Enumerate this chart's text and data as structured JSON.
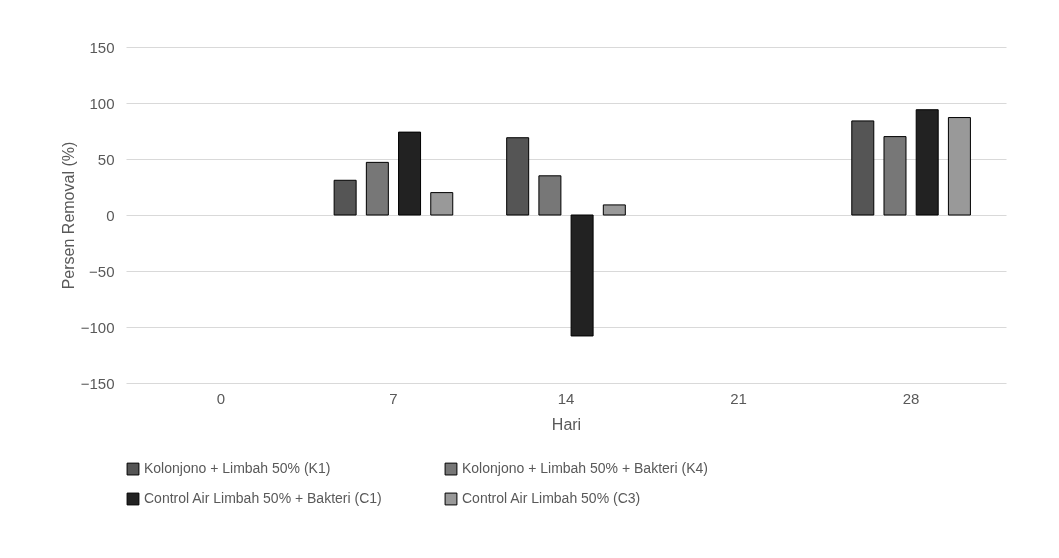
{
  "chart_data": {
    "type": "bar",
    "xlabel": "Hari",
    "ylabel": "Persen Removal (%)",
    "categories": [
      "0",
      "7",
      "14",
      "21",
      "28"
    ],
    "series": [
      {
        "name": "Kolonjono + Limbah 50% (K1)",
        "color": "#555555",
        "values": [
          null,
          31,
          69,
          null,
          84
        ]
      },
      {
        "name": "Kolonjono + Limbah 50% + Bakteri (K4)",
        "color": "#777777",
        "values": [
          null,
          47,
          35,
          null,
          70
        ]
      },
      {
        "name": "Control Air Limbah 50% + Bakteri (C1)",
        "color": "#222222",
        "values": [
          null,
          74,
          -108,
          null,
          94
        ]
      },
      {
        "name": "Control Air Limbah 50% (C3)",
        "color": "#999999",
        "values": [
          null,
          20,
          9,
          null,
          87
        ]
      }
    ],
    "ylim": [
      -150,
      150
    ],
    "yticks": [
      -150,
      -100,
      -50,
      0,
      50,
      100,
      150
    ],
    "grid": "y",
    "legend": "bottom"
  }
}
